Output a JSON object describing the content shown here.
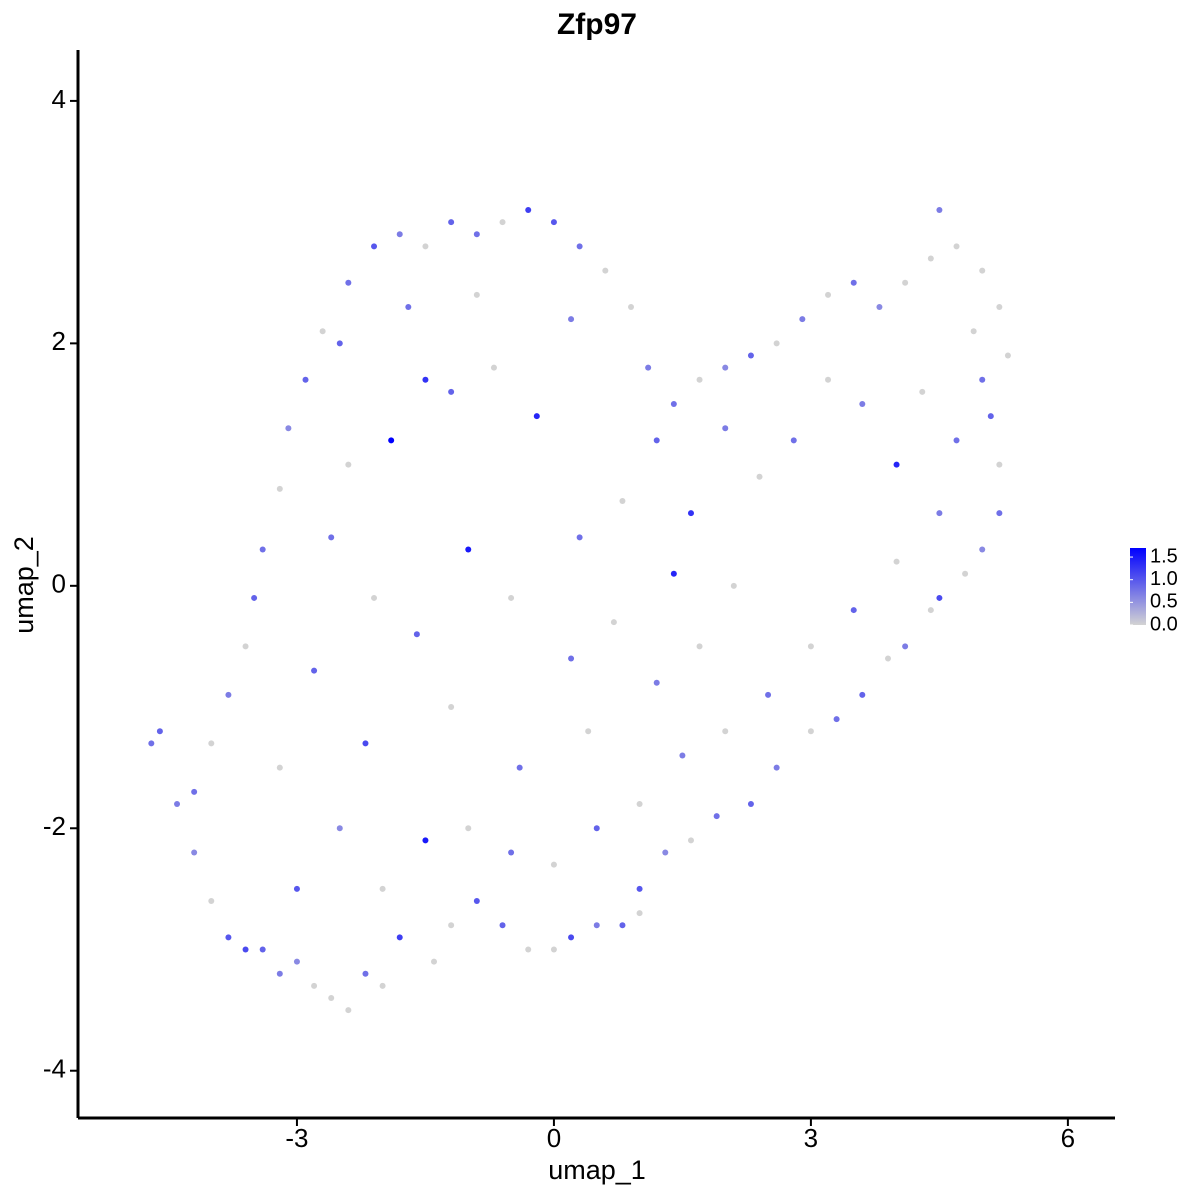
{
  "chart_data": {
    "type": "scatter",
    "title": "Zfp97",
    "x_label": "umap_1",
    "y_label": "umap_2",
    "xlim": [
      -5.556,
      6.55
    ],
    "ylim": [
      -4.39,
      4.42
    ],
    "xticks": [
      -3,
      0,
      3,
      6
    ],
    "yticks": [
      -4,
      -2,
      0,
      2,
      4
    ],
    "color_low": "#d3d3d3",
    "color_high": "#0000ff",
    "color_limits": [
      0,
      1.7
    ],
    "colorbar_ticks": [
      {
        "value": 0,
        "label": "0.0"
      },
      0.5,
      {
        "value": 1,
        "label": "1.0"
      },
      1.5
    ],
    "x": [
      -4.7,
      -4.6,
      -4.4,
      -4.2,
      -4.0,
      -3.8,
      -3.6,
      -3.4,
      -3.2,
      -3.0,
      -2.8,
      -2.6,
      -2.4,
      -2.2,
      -2.0,
      -1.8,
      -1.4,
      -1.2,
      -0.9,
      -0.6,
      -0.3,
      0.0,
      0.2,
      0.5,
      0.8,
      1.0,
      1.0,
      1.3,
      1.6,
      1.9,
      2.3,
      2.6,
      3.0,
      3.3,
      3.6,
      3.9,
      4.1,
      4.4,
      4.5,
      4.8,
      5.0,
      5.2,
      5.2,
      5.1,
      5.3,
      5.2,
      5.0,
      4.7,
      4.5,
      4.4,
      4.1,
      3.8,
      3.5,
      3.2,
      2.9,
      2.6,
      2.3,
      2.0,
      1.7,
      1.4,
      1.1,
      0.9,
      0.6,
      0.3,
      0.0,
      -0.3,
      -0.6,
      -0.9,
      -1.2,
      -1.5,
      -1.8,
      -2.1,
      -2.4,
      -2.7,
      -2.9,
      -3.1,
      -3.2,
      -3.4,
      -3.5,
      -3.6,
      -3.8,
      -4.0,
      -4.2,
      -3.0,
      -2.5,
      -2.0,
      -1.5,
      -1.0,
      -0.5,
      0.0,
      0.5,
      1.0,
      1.5,
      2.0,
      2.5,
      3.0,
      3.5,
      4.0,
      4.5,
      4.7,
      4.3,
      4.0,
      3.6,
      3.2,
      2.8,
      2.4,
      2.0,
      1.6,
      1.2,
      0.8,
      0.3,
      -0.2,
      -0.7,
      -1.2,
      -1.5,
      -1.9,
      -2.4,
      -2.6,
      -2.1,
      -1.6,
      -1.0,
      -0.5,
      0.2,
      0.7,
      1.2,
      1.7,
      -2.8,
      -3.2,
      -2.2,
      -1.2,
      -0.4,
      0.4,
      1.4,
      2.1,
      -1.7,
      -0.9,
      0.2,
      -2.5,
      4.9,
      5.0
    ],
    "y": [
      -1.3,
      -1.2,
      -1.8,
      -2.2,
      -2.6,
      -2.9,
      -3.0,
      -3.0,
      -3.2,
      -3.1,
      -3.3,
      -3.4,
      -3.5,
      -3.2,
      -3.3,
      -2.9,
      -3.1,
      -2.8,
      -2.6,
      -2.8,
      -3.0,
      -3.0,
      -2.9,
      -2.8,
      -2.8,
      -2.7,
      -2.5,
      -2.2,
      -2.1,
      -1.9,
      -1.8,
      -1.5,
      -1.2,
      -1.1,
      -0.9,
      -0.6,
      -0.5,
      -0.2,
      -0.1,
      0.1,
      0.3,
      0.6,
      1.0,
      1.4,
      1.9,
      2.3,
      2.6,
      2.8,
      3.1,
      2.7,
      2.5,
      2.3,
      2.5,
      2.4,
      2.2,
      2.0,
      1.9,
      1.8,
      1.7,
      1.5,
      1.8,
      2.3,
      2.6,
      2.8,
      3.0,
      3.1,
      3.0,
      2.9,
      3.0,
      2.8,
      2.9,
      2.8,
      2.5,
      2.1,
      1.7,
      1.3,
      0.8,
      0.3,
      -0.1,
      -0.5,
      -0.9,
      -1.3,
      -1.7,
      -2.5,
      -2.0,
      -2.5,
      -2.1,
      -2.0,
      -2.2,
      -2.3,
      -2.0,
      -1.8,
      -1.4,
      -1.2,
      -0.9,
      -0.5,
      -0.2,
      0.2,
      0.6,
      1.2,
      1.6,
      1.0,
      1.5,
      1.7,
      1.2,
      0.9,
      1.3,
      0.6,
      1.2,
      0.7,
      0.4,
      1.4,
      1.8,
      1.6,
      1.7,
      1.2,
      1.0,
      0.4,
      -0.1,
      -0.4,
      0.3,
      -0.1,
      -0.6,
      -0.3,
      -0.8,
      -0.5,
      -0.7,
      -1.5,
      -1.3,
      -1.0,
      -1.5,
      -1.2,
      0.1,
      0.0,
      2.3,
      2.4,
      2.2,
      2.0,
      2.1,
      1.7
    ],
    "values": [
      0.8,
      0.9,
      0.7,
      0.6,
      0,
      1.0,
      1.1,
      0.9,
      0.7,
      0.6,
      0,
      0,
      0,
      0.8,
      0,
      1.2,
      0,
      0,
      1.0,
      0.9,
      0,
      0,
      1.1,
      0.7,
      0.9,
      0,
      1.0,
      0.6,
      0,
      0.8,
      0.9,
      0.7,
      0,
      0.8,
      0.9,
      0,
      0.7,
      0,
      1.1,
      0,
      0.6,
      0.8,
      0,
      0.9,
      0,
      0,
      0,
      0,
      0.7,
      0,
      0,
      0.6,
      0.8,
      0,
      0.7,
      0,
      0.9,
      0.6,
      0,
      0.8,
      0.7,
      0,
      0,
      0.8,
      1.0,
      1.2,
      0,
      0.8,
      0.9,
      0,
      0.7,
      1.0,
      0.8,
      0,
      0.9,
      0.6,
      0,
      0.8,
      0.9,
      0,
      0.7,
      0,
      0.8,
      1.0,
      0.6,
      0,
      1.5,
      0,
      0.8,
      0,
      0.9,
      0,
      0.7,
      0,
      0.8,
      0,
      0.9,
      0,
      0.7,
      0.8,
      0,
      1.4,
      0.7,
      0,
      0.8,
      0,
      0.7,
      1.3,
      0.9,
      0,
      0.8,
      1.4,
      0,
      0.9,
      1.3,
      1.7,
      0,
      0.8,
      0,
      0.9,
      1.5,
      0,
      0.8,
      0,
      0.7,
      0,
      0.9,
      0,
      1.1,
      0,
      0.8,
      0,
      1.4,
      0,
      0.8,
      0,
      0.7,
      0.9,
      0,
      0.8
    ]
  }
}
